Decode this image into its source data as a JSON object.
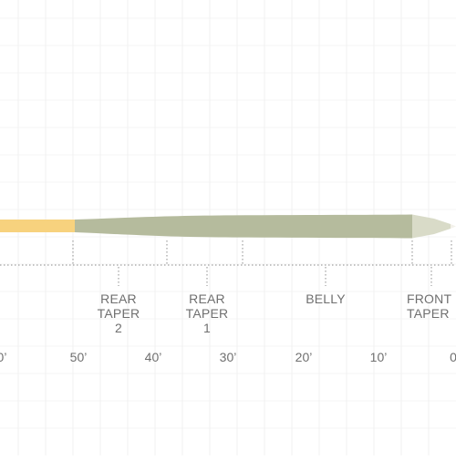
{
  "colors": {
    "running_line": "#f7d27e",
    "belly": "#b5bb9d",
    "front_taper": "#d9dbc8",
    "tip": "#f3f1ea",
    "grid": "#e9e9e9",
    "dotted": "#8c8c8c",
    "text": "#6f6f6f"
  },
  "segments": [
    {
      "id": "rear-taper-2",
      "lines": [
        "REAR",
        "TAPER",
        "2"
      ]
    },
    {
      "id": "rear-taper-1",
      "lines": [
        "REAR",
        "TAPER",
        "1"
      ]
    },
    {
      "id": "belly",
      "lines": [
        "BELLY"
      ]
    },
    {
      "id": "front-taper",
      "lines": [
        "FRONT",
        "TAPER"
      ]
    }
  ],
  "distances": [
    "0’",
    "50’",
    "40’",
    "30’",
    "20’",
    "10’",
    "0"
  ]
}
